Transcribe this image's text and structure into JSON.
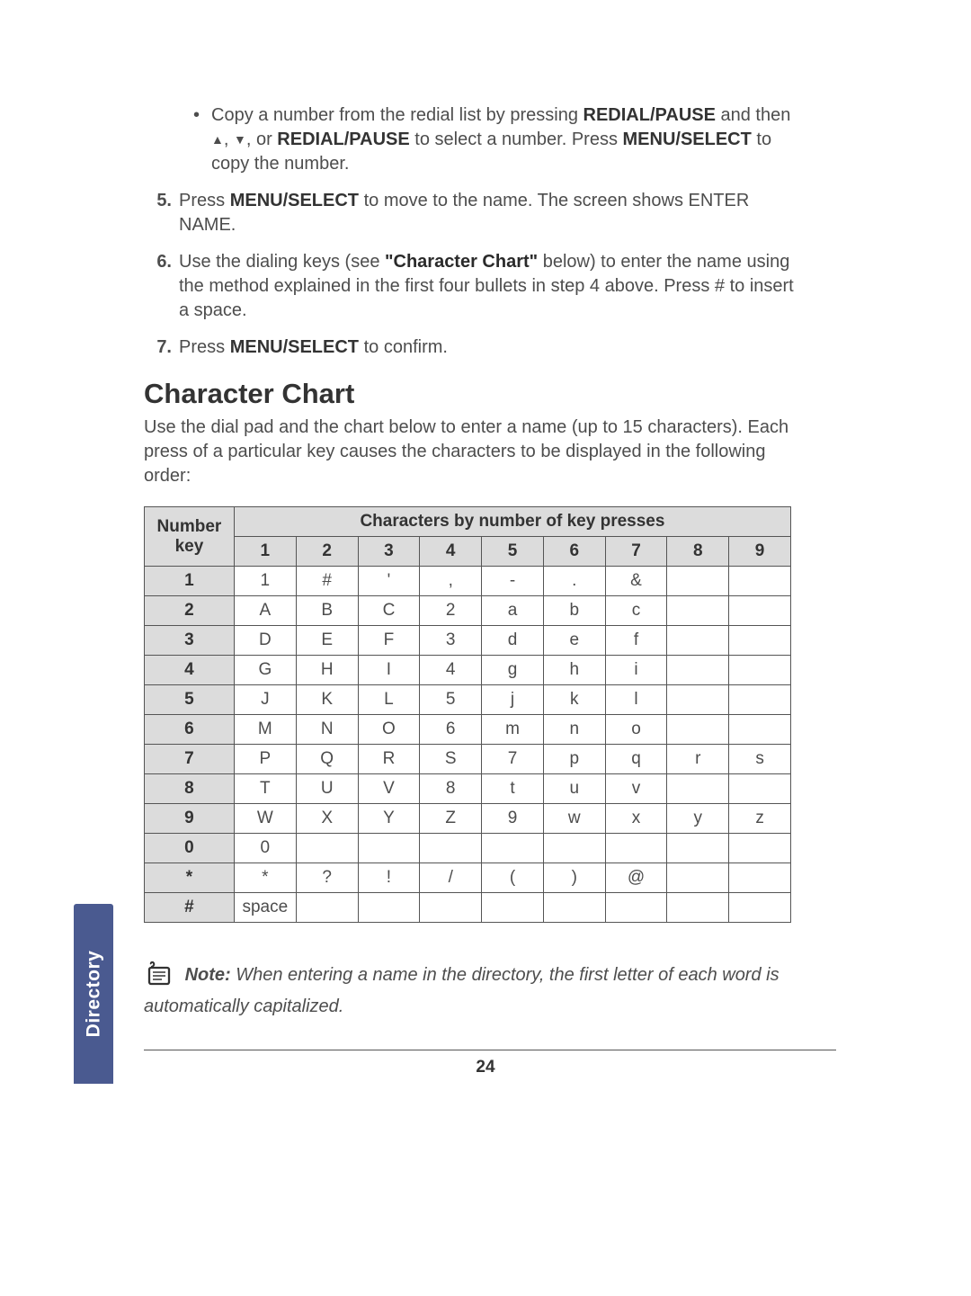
{
  "bullet": {
    "pre": "Copy a number from the redial list by pressing ",
    "redial": "REDIAL/PAUSE",
    "mid1": " and then ",
    "up": "▲",
    "comma": ", ",
    "down": "▼",
    "mid2": ", or ",
    "mid3": " to select a number. Press ",
    "menu": "MENU/SELECT",
    "tail": " to copy the number."
  },
  "steps": {
    "s5": {
      "num": "5.",
      "pre": "Press ",
      "b1": "MENU/SELECT",
      "mid": " to move to the name. The screen shows ENTER NAME."
    },
    "s6": {
      "num": "6.",
      "pre": "Use the dialing keys (see ",
      "b1": "\"Character Chart\"",
      "mid": " below) to enter the name using the method explained in the first four bullets in step 4 above. Press # to insert a space."
    },
    "s7": {
      "num": "7.",
      "pre": "Press ",
      "b1": "MENU/SELECT",
      "mid": " to confirm."
    }
  },
  "section_title": "Character Chart",
  "intro": "Use the dial pad and the chart below to enter a name (up to 15 characters). Each press of a particular key causes the characters to be displayed in the following order:",
  "table": {
    "toph": "Characters by number of key presses",
    "keyh": "Number key",
    "cols": [
      "1",
      "2",
      "3",
      "4",
      "5",
      "6",
      "7",
      "8",
      "9"
    ],
    "rows": [
      {
        "key": "1",
        "cells": [
          "1",
          "#",
          "'",
          ",",
          "-",
          ".",
          "&",
          "",
          ""
        ]
      },
      {
        "key": "2",
        "cells": [
          "A",
          "B",
          "C",
          "2",
          "a",
          "b",
          "c",
          "",
          ""
        ]
      },
      {
        "key": "3",
        "cells": [
          "D",
          "E",
          "F",
          "3",
          "d",
          "e",
          "f",
          "",
          ""
        ]
      },
      {
        "key": "4",
        "cells": [
          "G",
          "H",
          "I",
          "4",
          "g",
          "h",
          "i",
          "",
          ""
        ]
      },
      {
        "key": "5",
        "cells": [
          "J",
          "K",
          "L",
          "5",
          "j",
          "k",
          "l",
          "",
          ""
        ]
      },
      {
        "key": "6",
        "cells": [
          "M",
          "N",
          "O",
          "6",
          "m",
          "n",
          "o",
          "",
          ""
        ]
      },
      {
        "key": "7",
        "cells": [
          "P",
          "Q",
          "R",
          "S",
          "7",
          "p",
          "q",
          "r",
          "s"
        ]
      },
      {
        "key": "8",
        "cells": [
          "T",
          "U",
          "V",
          "8",
          "t",
          "u",
          "v",
          "",
          ""
        ]
      },
      {
        "key": "9",
        "cells": [
          "W",
          "X",
          "Y",
          "Z",
          "9",
          "w",
          "x",
          "y",
          "z"
        ]
      },
      {
        "key": "0",
        "cells": [
          "0",
          "",
          "",
          "",
          "",
          "",
          "",
          "",
          ""
        ]
      },
      {
        "key": "*",
        "cells": [
          "*",
          "?",
          "!",
          "/",
          "(",
          ")",
          "@",
          "",
          ""
        ]
      },
      {
        "key": "#",
        "cells": [
          "space",
          "",
          "",
          "",
          "",
          "",
          "",
          "",
          ""
        ]
      }
    ]
  },
  "note": {
    "label": "Note:",
    "text": " When entering a name in the directory, the first letter of each word is automatically capitalized."
  },
  "sidetab": "Directory",
  "page_num": "24"
}
